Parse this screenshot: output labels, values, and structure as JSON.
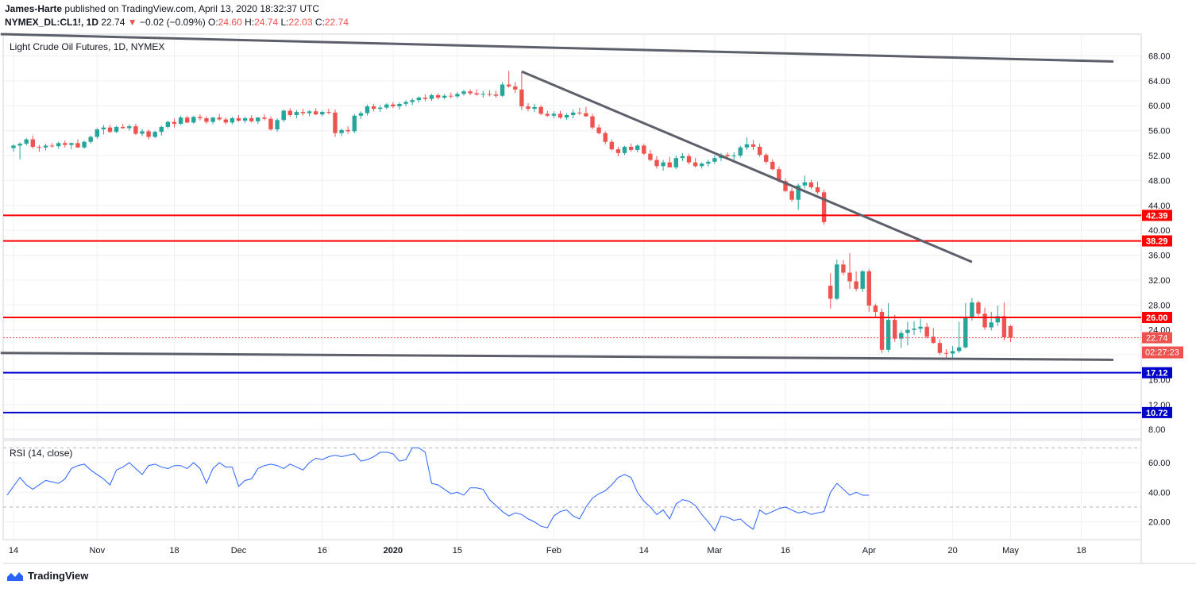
{
  "header": {
    "author": "James-Harte",
    "published_text": "published on TradingView.com, April 13, 2020 18:32:37 UTC",
    "symbol": "NYMEX_DL:CL1!, 1D",
    "last": "22.74",
    "change_arrow": "▼",
    "change": "−0.02 (−0.09%)",
    "open_label": "O:",
    "open": "24.60",
    "high_label": "H:",
    "high": "24.74",
    "low_label": "L:",
    "low": "22.03",
    "close_label": "C:",
    "close": "22.74"
  },
  "footer": {
    "brand": "TradingView"
  },
  "colors": {
    "up": "#26a69a",
    "down": "#ef5350",
    "support_resistance": "#ff0000",
    "target": "#0000cc",
    "trendline": "#5d606b",
    "rsi": "#2962ff",
    "text": "#131722"
  },
  "chart_data": {
    "type": "candlestick",
    "title": "Light Crude Oil Futures, 1D, NYMEX",
    "price_axis": {
      "ylim": [
        6.5,
        71.5
      ],
      "ticks": [
        "8.00",
        "12.00",
        "16.00",
        "20.00",
        "24.00",
        "28.00",
        "32.00",
        "36.00",
        "40.00",
        "44.00",
        "48.00",
        "52.00",
        "56.00",
        "60.00",
        "64.00",
        "68.00"
      ]
    },
    "x_axis": {
      "labels": [
        {
          "label": "14",
          "bar": 0
        },
        {
          "label": "Nov",
          "bar": 13
        },
        {
          "label": "18",
          "bar": 25
        },
        {
          "label": "Dec",
          "bar": 35
        },
        {
          "label": "16",
          "bar": 48
        },
        {
          "label": "2020",
          "bar": 59
        },
        {
          "label": "15",
          "bar": 69
        },
        {
          "label": "Feb",
          "bar": 84
        },
        {
          "label": "14",
          "bar": 98
        },
        {
          "label": "Mar",
          "bar": 109
        },
        {
          "label": "16",
          "bar": 120
        },
        {
          "label": "Apr",
          "bar": 133
        },
        {
          "label": "20",
          "bar": 146
        },
        {
          "label": "May",
          "bar": 155
        },
        {
          "label": "18",
          "bar": 166
        }
      ],
      "total_bars": 171
    },
    "candles": [
      [
        53.2,
        53.8,
        52.6,
        53.6
      ],
      [
        53.6,
        54.1,
        51.4,
        53.9
      ],
      [
        53.9,
        54.8,
        53.6,
        54.6
      ],
      [
        54.6,
        55.2,
        53.1,
        53.4
      ],
      [
        53.4,
        53.7,
        52.6,
        53.3
      ],
      [
        53.3,
        53.9,
        52.8,
        53.6
      ],
      [
        53.6,
        54.0,
        53.3,
        53.5
      ],
      [
        53.5,
        54.2,
        53.1,
        54.0
      ],
      [
        54.0,
        54.4,
        53.3,
        53.7
      ],
      [
        53.7,
        54.1,
        53.0,
        54.0
      ],
      [
        54.0,
        54.6,
        53.2,
        53.3
      ],
      [
        53.3,
        54.4,
        53.1,
        54.2
      ],
      [
        54.2,
        55.2,
        53.9,
        55.0
      ],
      [
        55.0,
        56.4,
        54.7,
        56.2
      ],
      [
        56.2,
        56.9,
        55.4,
        56.5
      ],
      [
        56.5,
        56.9,
        55.6,
        55.8
      ],
      [
        55.8,
        56.8,
        55.6,
        56.6
      ],
      [
        56.6,
        57.1,
        56.3,
        56.4
      ],
      [
        56.4,
        57.0,
        56.0,
        56.7
      ],
      [
        56.7,
        57.1,
        55.3,
        55.5
      ],
      [
        55.5,
        56.3,
        55.1,
        55.9
      ],
      [
        55.9,
        56.2,
        54.6,
        55.0
      ],
      [
        55.0,
        56.0,
        54.8,
        55.8
      ],
      [
        55.8,
        56.8,
        55.2,
        56.6
      ],
      [
        56.6,
        57.6,
        56.3,
        57.4
      ],
      [
        57.4,
        57.9,
        56.5,
        57.1
      ],
      [
        57.1,
        58.4,
        56.9,
        58.1
      ],
      [
        58.1,
        58.4,
        57.2,
        57.3
      ],
      [
        57.3,
        58.4,
        57.1,
        58.2
      ],
      [
        58.2,
        58.6,
        57.6,
        58.0
      ],
      [
        58.0,
        58.3,
        57.1,
        57.4
      ],
      [
        57.4,
        58.2,
        57.0,
        58.1
      ],
      [
        58.1,
        58.7,
        57.6,
        57.8
      ],
      [
        57.8,
        58.1,
        57.0,
        57.3
      ],
      [
        57.3,
        58.2,
        57.0,
        58.0
      ],
      [
        58.0,
        58.5,
        57.4,
        57.6
      ],
      [
        57.6,
        58.2,
        57.2,
        58.0
      ],
      [
        58.0,
        58.5,
        57.3,
        57.5
      ],
      [
        57.5,
        58.2,
        57.1,
        58.1
      ],
      [
        58.1,
        58.6,
        57.6,
        57.9
      ],
      [
        57.9,
        58.3,
        56.0,
        56.2
      ],
      [
        56.2,
        58.0,
        55.8,
        57.7
      ],
      [
        57.7,
        59.4,
        57.4,
        59.2
      ],
      [
        59.2,
        59.6,
        58.2,
        58.5
      ],
      [
        58.5,
        59.3,
        58.0,
        59.0
      ],
      [
        59.0,
        59.5,
        58.4,
        58.8
      ],
      [
        58.8,
        59.3,
        58.3,
        59.1
      ],
      [
        59.1,
        59.6,
        58.5,
        58.6
      ],
      [
        58.6,
        59.2,
        58.3,
        59.0
      ],
      [
        59.0,
        59.5,
        58.6,
        58.9
      ],
      [
        58.9,
        59.4,
        55.0,
        55.6
      ],
      [
        55.6,
        56.3,
        55.1,
        56.1
      ],
      [
        56.1,
        56.7,
        55.5,
        55.9
      ],
      [
        55.9,
        58.7,
        55.6,
        58.4
      ],
      [
        58.4,
        59.1,
        57.9,
        58.8
      ],
      [
        58.8,
        60.2,
        58.4,
        59.9
      ],
      [
        59.9,
        60.3,
        59.1,
        59.5
      ],
      [
        59.5,
        60.1,
        59.0,
        59.7
      ],
      [
        59.7,
        60.4,
        59.4,
        60.2
      ],
      [
        60.2,
        60.6,
        59.6,
        59.9
      ],
      [
        59.9,
        60.5,
        59.4,
        60.3
      ],
      [
        60.3,
        60.9,
        59.9,
        60.6
      ],
      [
        60.6,
        61.2,
        60.1,
        60.9
      ],
      [
        60.9,
        61.5,
        60.5,
        61.3
      ],
      [
        61.3,
        61.8,
        60.7,
        61.1
      ],
      [
        61.1,
        61.9,
        60.8,
        61.7
      ],
      [
        61.7,
        62.0,
        61.0,
        61.3
      ],
      [
        61.3,
        61.9,
        61.0,
        61.6
      ],
      [
        61.6,
        62.1,
        61.2,
        61.5
      ],
      [
        61.5,
        62.2,
        61.2,
        61.9
      ],
      [
        61.9,
        62.6,
        61.6,
        62.3
      ],
      [
        62.3,
        62.6,
        61.7,
        62.0
      ],
      [
        62.0,
        62.6,
        61.6,
        61.8
      ],
      [
        61.8,
        62.4,
        61.3,
        61.9
      ],
      [
        61.9,
        62.5,
        61.5,
        61.8
      ],
      [
        61.8,
        62.4,
        61.3,
        61.6
      ],
      [
        61.6,
        63.8,
        61.4,
        63.4
      ],
      [
        63.4,
        65.6,
        62.9,
        63.1
      ],
      [
        63.1,
        63.8,
        62.0,
        62.6
      ],
      [
        62.6,
        65.5,
        59.3,
        59.9
      ],
      [
        59.9,
        60.4,
        59.1,
        59.5
      ],
      [
        59.5,
        60.3,
        59.0,
        59.8
      ],
      [
        59.8,
        60.1,
        58.5,
        58.7
      ],
      [
        58.7,
        59.2,
        58.2,
        58.4
      ],
      [
        58.4,
        59.1,
        58.0,
        58.7
      ],
      [
        58.7,
        59.2,
        57.9,
        58.1
      ],
      [
        58.1,
        58.8,
        57.7,
        58.5
      ],
      [
        58.5,
        59.4,
        58.0,
        58.9
      ],
      [
        58.9,
        59.7,
        58.5,
        58.8
      ],
      [
        58.8,
        59.8,
        58.2,
        58.3
      ],
      [
        58.3,
        58.7,
        56.2,
        56.5
      ],
      [
        56.5,
        57.0,
        55.4,
        55.6
      ],
      [
        55.6,
        55.9,
        53.8,
        54.2
      ],
      [
        54.2,
        54.6,
        52.8,
        53.0
      ],
      [
        53.0,
        53.4,
        51.9,
        52.4
      ],
      [
        52.4,
        53.6,
        52.1,
        53.4
      ],
      [
        53.4,
        53.9,
        52.6,
        52.9
      ],
      [
        52.9,
        53.8,
        52.5,
        53.6
      ],
      [
        53.6,
        53.9,
        52.1,
        52.3
      ],
      [
        52.3,
        52.9,
        51.1,
        51.3
      ],
      [
        51.3,
        51.9,
        49.9,
        50.3
      ],
      [
        50.3,
        51.3,
        49.6,
        50.9
      ],
      [
        50.9,
        51.8,
        50.5,
        50.1
      ],
      [
        50.1,
        52.0,
        49.8,
        51.6
      ],
      [
        51.6,
        52.4,
        51.1,
        51.9
      ],
      [
        51.9,
        52.3,
        50.6,
        50.9
      ],
      [
        50.9,
        51.6,
        50.1,
        50.3
      ],
      [
        50.3,
        50.9,
        49.9,
        50.7
      ],
      [
        50.7,
        51.3,
        50.2,
        51.0
      ],
      [
        51.0,
        52.0,
        50.6,
        51.6
      ],
      [
        51.6,
        52.4,
        51.1,
        52.1
      ],
      [
        52.1,
        52.5,
        51.4,
        51.9
      ],
      [
        51.9,
        52.5,
        51.3,
        52.0
      ],
      [
        52.0,
        53.6,
        51.7,
        53.3
      ],
      [
        53.3,
        54.9,
        52.9,
        53.8
      ],
      [
        53.8,
        54.5,
        52.9,
        53.4
      ],
      [
        53.4,
        53.9,
        51.8,
        52.1
      ],
      [
        52.1,
        52.4,
        50.7,
        51.0
      ],
      [
        51.0,
        51.4,
        49.6,
        49.8
      ],
      [
        49.8,
        50.2,
        47.7,
        47.9
      ],
      [
        47.9,
        48.3,
        46.1,
        46.3
      ],
      [
        46.3,
        46.8,
        44.6,
        44.9
      ],
      [
        44.9,
        47.5,
        43.3,
        47.2
      ],
      [
        47.2,
        48.8,
        46.7,
        47.7
      ],
      [
        47.7,
        48.1,
        46.6,
        46.9
      ],
      [
        46.9,
        47.8,
        45.8,
        46.1
      ],
      [
        46.1,
        46.5,
        40.9,
        41.3
      ],
      [
        31.1,
        33.1,
        27.4,
        29.0
      ],
      [
        29.0,
        35.3,
        28.8,
        34.5
      ],
      [
        34.5,
        35.2,
        32.8,
        33.2
      ],
      [
        33.2,
        36.3,
        30.6,
        31.8
      ],
      [
        31.8,
        33.4,
        30.2,
        30.6
      ],
      [
        30.6,
        33.6,
        30.1,
        33.4
      ],
      [
        33.4,
        33.8,
        26.9,
        27.9
      ],
      [
        27.9,
        28.2,
        26.1,
        26.9
      ],
      [
        26.9,
        27.4,
        20.3,
        20.8
      ],
      [
        20.8,
        28.3,
        20.4,
        25.6
      ],
      [
        25.6,
        26.4,
        22.1,
        22.6
      ],
      [
        22.6,
        23.9,
        21.1,
        23.5
      ],
      [
        23.5,
        25.3,
        21.5,
        24.0
      ],
      [
        24.0,
        25.4,
        23.2,
        24.2
      ],
      [
        24.2,
        25.8,
        23.5,
        24.5
      ],
      [
        24.5,
        25.1,
        22.6,
        22.9
      ],
      [
        22.9,
        24.3,
        21.8,
        21.9
      ],
      [
        21.9,
        22.5,
        20.0,
        20.3
      ],
      [
        20.3,
        20.9,
        19.3,
        20.2
      ],
      [
        20.2,
        21.4,
        19.5,
        20.6
      ],
      [
        20.6,
        25.3,
        20.3,
        21.2
      ],
      [
        21.2,
        28.3,
        21.0,
        25.9
      ],
      [
        25.9,
        29.1,
        25.5,
        28.4
      ],
      [
        28.4,
        28.7,
        26.2,
        26.6
      ],
      [
        26.6,
        27.6,
        24.0,
        24.4
      ],
      [
        24.4,
        26.9,
        23.9,
        25.2
      ],
      [
        25.2,
        27.9,
        24.6,
        26.2
      ],
      [
        26.2,
        28.4,
        22.3,
        22.8
      ],
      [
        24.6,
        24.74,
        22.03,
        22.74
      ]
    ],
    "horizontal_levels": [
      {
        "value": 42.39,
        "label": "42.39",
        "color": "#ff0000"
      },
      {
        "value": 38.29,
        "label": "38.29",
        "color": "#ff0000"
      },
      {
        "value": 26.0,
        "label": "26.00",
        "color": "#ff0000"
      },
      {
        "value": 17.12,
        "label": "17.12",
        "color": "#0000cc"
      },
      {
        "value": 10.72,
        "label": "10.72",
        "color": "#0000cc"
      }
    ],
    "last_price": {
      "value": 22.74,
      "label": "22.74",
      "countdown": "02:27:23"
    },
    "trendlines": [
      {
        "from": [
          -2,
          71.5
        ],
        "to": [
          171,
          67.1
        ]
      },
      {
        "from": [
          79,
          65.5
        ],
        "to": [
          149,
          34.9
        ]
      },
      {
        "from": [
          -2,
          20.3
        ],
        "to": [
          171,
          19.2
        ]
      }
    ],
    "rsi": {
      "title": "RSI (14, close)",
      "ylim": [
        8,
        75
      ],
      "ticks": [
        "20.00",
        "40.00",
        "60.00"
      ],
      "bands": [
        30,
        70
      ],
      "values": [
        38,
        44,
        50,
        45,
        42,
        45,
        48,
        47,
        46,
        49,
        56,
        58,
        59,
        55,
        52,
        49,
        45,
        55,
        57,
        60,
        56,
        52,
        58,
        59,
        57,
        56,
        58,
        58,
        56,
        60,
        56,
        46,
        56,
        60,
        57,
        57,
        44,
        48,
        49,
        56,
        58,
        59,
        58,
        56,
        59,
        57,
        55,
        60,
        63,
        62,
        64,
        65,
        64,
        65,
        66,
        61,
        62,
        64,
        67,
        67,
        66,
        61,
        62,
        70,
        70,
        67,
        46,
        45,
        42,
        39,
        40,
        38,
        43,
        43,
        42,
        35,
        31,
        27,
        24,
        26,
        25,
        22,
        20,
        17,
        16,
        24,
        27,
        28,
        24,
        22,
        30,
        36,
        39,
        41,
        45,
        50,
        52,
        50,
        40,
        34,
        30,
        25,
        28,
        22,
        32,
        35,
        34,
        31,
        25,
        20,
        14,
        24,
        23,
        21,
        22,
        18,
        15,
        28,
        25,
        27,
        29,
        30,
        28,
        26,
        27,
        25,
        26,
        27,
        40,
        46,
        42,
        38,
        40,
        38,
        38
      ]
    }
  }
}
